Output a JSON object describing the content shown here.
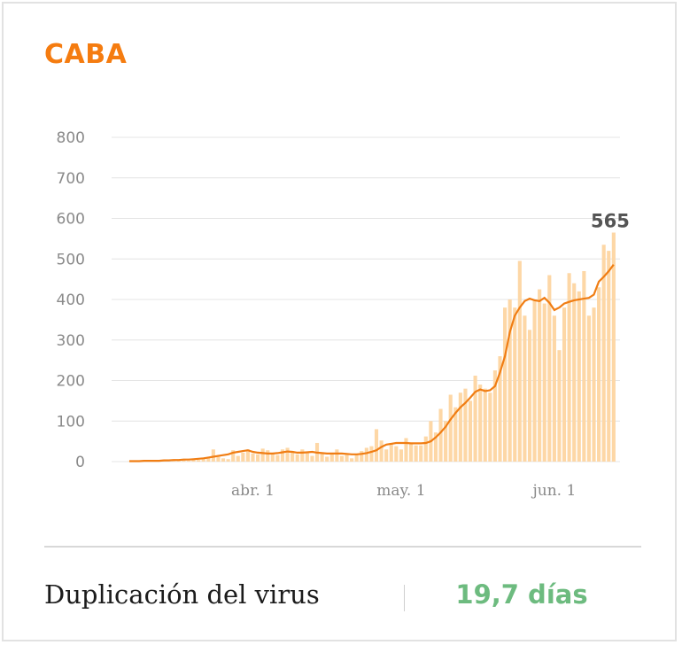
{
  "header": {
    "title": "CABA"
  },
  "footer": {
    "label": "Duplicación del virus",
    "value": "19,7 días"
  },
  "colors": {
    "accent": "#f57c10",
    "bar": "#fdd7a6",
    "line": "#f07d13",
    "grid": "#e4e4e4",
    "axis_text": "#8a8a8a",
    "value_green": "#6dbb7f"
  },
  "chart_data": {
    "type": "bar",
    "title": "CABA",
    "ylim": [
      0,
      800
    ],
    "yticks": [
      0,
      100,
      200,
      300,
      400,
      500,
      600,
      700,
      800
    ],
    "xticks": [
      {
        "index": 25,
        "label": "abr. 1"
      },
      {
        "index": 55,
        "label": "may. 1"
      },
      {
        "index": 86,
        "label": "jun. 1"
      }
    ],
    "grid": true,
    "annotation": {
      "index": 98,
      "label": "565"
    },
    "bar_values": [
      1,
      0,
      1,
      2,
      0,
      1,
      3,
      2,
      0,
      4,
      3,
      5,
      2,
      6,
      4,
      8,
      10,
      30,
      12,
      8,
      6,
      28,
      14,
      22,
      30,
      20,
      18,
      32,
      28,
      22,
      16,
      30,
      34,
      26,
      18,
      30,
      22,
      14,
      46,
      20,
      12,
      22,
      30,
      14,
      20,
      8,
      18,
      26,
      34,
      38,
      80,
      52,
      30,
      46,
      38,
      30,
      58,
      46,
      40,
      40,
      62,
      100,
      72,
      130,
      100,
      165,
      134,
      170,
      180,
      150,
      212,
      190,
      180,
      170,
      225,
      260,
      380,
      400,
      380,
      495,
      360,
      325,
      400,
      425,
      390,
      460,
      360,
      275,
      380,
      465,
      440,
      420,
      470,
      360,
      380,
      430,
      535,
      520,
      565
    ],
    "line_values": [
      1,
      1,
      1,
      2,
      2,
      2,
      2,
      3,
      3,
      4,
      4,
      5,
      5,
      6,
      7,
      8,
      10,
      12,
      14,
      16,
      18,
      22,
      24,
      26,
      28,
      24,
      22,
      21,
      20,
      20,
      21,
      23,
      25,
      24,
      22,
      22,
      23,
      24,
      22,
      21,
      20,
      20,
      20,
      20,
      19,
      18,
      18,
      19,
      21,
      24,
      28,
      36,
      42,
      44,
      46,
      46,
      46,
      45,
      45,
      45,
      46,
      50,
      60,
      72,
      86,
      104,
      120,
      134,
      145,
      158,
      172,
      178,
      174,
      176,
      186,
      220,
      260,
      320,
      360,
      380,
      396,
      402,
      398,
      396,
      404,
      392,
      374,
      380,
      390,
      394,
      398,
      400,
      402,
      404,
      412,
      444,
      456,
      470,
      486
    ]
  }
}
